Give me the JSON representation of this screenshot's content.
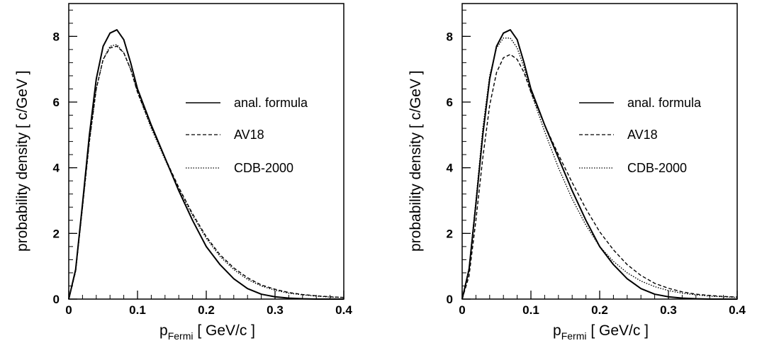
{
  "chart_data": [
    {
      "type": "line",
      "xlabel_main": "p",
      "xlabel_sub": "Fermi",
      "xlabel_unit": "[ GeV/c ]",
      "ylabel": "probability density  [ c/GeV ]",
      "xlim": [
        0,
        0.4
      ],
      "ylim": [
        0,
        9
      ],
      "xticks": [
        0,
        0.1,
        0.2,
        0.3,
        0.4
      ],
      "xtick_labels": [
        "0",
        "0.1",
        "0.2",
        "0.3",
        "0.4"
      ],
      "yticks": [
        0,
        2,
        4,
        6,
        8
      ],
      "ytick_labels": [
        "0",
        "2",
        "4",
        "6",
        "8"
      ],
      "grid": false,
      "legend_position": "right",
      "series": [
        {
          "name": "anal. formula",
          "style": "solid",
          "x": [
            0,
            0.01,
            0.02,
            0.03,
            0.04,
            0.05,
            0.06,
            0.07,
            0.08,
            0.09,
            0.1,
            0.12,
            0.14,
            0.16,
            0.18,
            0.2,
            0.22,
            0.24,
            0.26,
            0.28,
            0.3,
            0.32,
            0.34,
            0.36,
            0.38,
            0.4
          ],
          "y": [
            0,
            0.9,
            2.9,
            5.0,
            6.7,
            7.7,
            8.1,
            8.2,
            7.9,
            7.2,
            6.4,
            5.3,
            4.3,
            3.3,
            2.4,
            1.6,
            1.05,
            0.62,
            0.32,
            0.15,
            0.07,
            0.03,
            0.01,
            0.0,
            0.0,
            0.0
          ]
        },
        {
          "name": "AV18",
          "style": "dashed",
          "x": [
            0,
            0.01,
            0.02,
            0.03,
            0.04,
            0.05,
            0.06,
            0.07,
            0.08,
            0.09,
            0.1,
            0.12,
            0.14,
            0.16,
            0.18,
            0.2,
            0.22,
            0.24,
            0.26,
            0.28,
            0.3,
            0.32,
            0.34,
            0.36,
            0.38,
            0.4
          ],
          "y": [
            0,
            0.85,
            2.8,
            4.8,
            6.4,
            7.3,
            7.65,
            7.7,
            7.5,
            7.0,
            6.3,
            5.25,
            4.3,
            3.4,
            2.6,
            1.9,
            1.35,
            0.95,
            0.65,
            0.43,
            0.3,
            0.2,
            0.14,
            0.1,
            0.07,
            0.05
          ]
        },
        {
          "name": "CDB-2000",
          "style": "dotted",
          "x": [
            0,
            0.01,
            0.02,
            0.03,
            0.04,
            0.05,
            0.06,
            0.07,
            0.08,
            0.09,
            0.1,
            0.12,
            0.14,
            0.16,
            0.18,
            0.2,
            0.22,
            0.24,
            0.26,
            0.28,
            0.3,
            0.32,
            0.34,
            0.36,
            0.38,
            0.4
          ],
          "y": [
            0,
            0.85,
            2.8,
            4.8,
            6.4,
            7.3,
            7.7,
            7.75,
            7.5,
            7.0,
            6.3,
            5.2,
            4.25,
            3.35,
            2.55,
            1.85,
            1.3,
            0.9,
            0.6,
            0.4,
            0.27,
            0.18,
            0.13,
            0.09,
            0.06,
            0.05
          ]
        }
      ]
    },
    {
      "type": "line",
      "xlabel_main": "p",
      "xlabel_sub": "Fermi",
      "xlabel_unit": "[ GeV/c ]",
      "ylabel": "probability density  [ c/GeV ]",
      "xlim": [
        0,
        0.4
      ],
      "ylim": [
        0,
        9
      ],
      "xticks": [
        0,
        0.1,
        0.2,
        0.3,
        0.4
      ],
      "xtick_labels": [
        "0",
        "0.1",
        "0.2",
        "0.3",
        "0.4"
      ],
      "yticks": [
        0,
        2,
        4,
        6,
        8
      ],
      "ytick_labels": [
        "0",
        "2",
        "4",
        "6",
        "8"
      ],
      "grid": false,
      "legend_position": "right",
      "series": [
        {
          "name": "anal. formula",
          "style": "solid",
          "x": [
            0,
            0.01,
            0.02,
            0.03,
            0.04,
            0.05,
            0.06,
            0.07,
            0.08,
            0.09,
            0.1,
            0.12,
            0.14,
            0.16,
            0.18,
            0.2,
            0.22,
            0.24,
            0.26,
            0.28,
            0.3,
            0.32,
            0.34,
            0.36,
            0.38,
            0.4
          ],
          "y": [
            0,
            0.9,
            2.9,
            5.0,
            6.7,
            7.7,
            8.1,
            8.2,
            7.9,
            7.2,
            6.4,
            5.3,
            4.3,
            3.3,
            2.4,
            1.6,
            1.05,
            0.62,
            0.32,
            0.15,
            0.07,
            0.03,
            0.01,
            0.0,
            0.0,
            0.0
          ]
        },
        {
          "name": "AV18",
          "style": "dashed",
          "x": [
            0,
            0.01,
            0.02,
            0.03,
            0.04,
            0.05,
            0.06,
            0.07,
            0.08,
            0.09,
            0.1,
            0.12,
            0.14,
            0.16,
            0.18,
            0.2,
            0.22,
            0.24,
            0.26,
            0.28,
            0.3,
            0.32,
            0.34,
            0.36,
            0.38,
            0.4
          ],
          "y": [
            0,
            0.7,
            2.4,
            4.3,
            5.9,
            6.9,
            7.35,
            7.45,
            7.3,
            6.9,
            6.3,
            5.3,
            4.4,
            3.55,
            2.75,
            2.05,
            1.5,
            1.05,
            0.72,
            0.48,
            0.33,
            0.22,
            0.15,
            0.11,
            0.08,
            0.06
          ]
        },
        {
          "name": "CDB-2000",
          "style": "dotted",
          "x": [
            0,
            0.01,
            0.02,
            0.03,
            0.04,
            0.05,
            0.06,
            0.07,
            0.08,
            0.09,
            0.1,
            0.12,
            0.14,
            0.16,
            0.18,
            0.2,
            0.22,
            0.24,
            0.26,
            0.28,
            0.3,
            0.32,
            0.34,
            0.36,
            0.38,
            0.4
          ],
          "y": [
            0,
            0.95,
            3.0,
            5.2,
            6.8,
            7.65,
            7.95,
            7.95,
            7.65,
            7.05,
            6.3,
            5.1,
            4.0,
            3.05,
            2.25,
            1.6,
            1.15,
            0.8,
            0.55,
            0.38,
            0.26,
            0.18,
            0.13,
            0.09,
            0.07,
            0.05
          ]
        }
      ]
    }
  ]
}
